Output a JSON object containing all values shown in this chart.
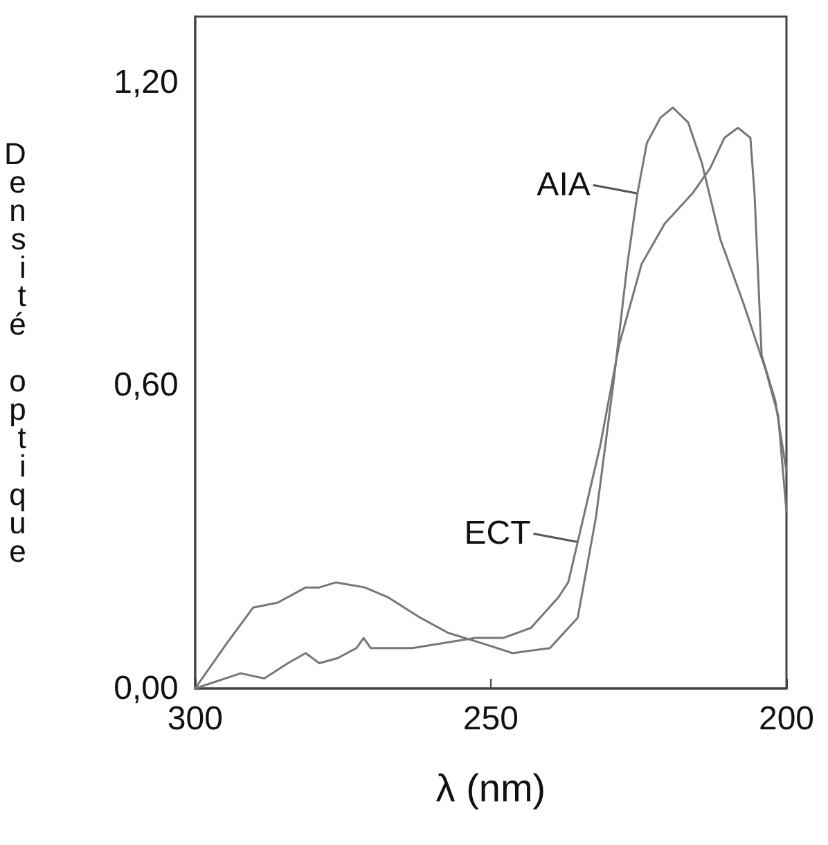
{
  "chart_data": {
    "type": "line",
    "xlabel": "λ (nm)",
    "ylabel": "Densité optique",
    "xlim": [
      300,
      200
    ],
    "xticks": [
      300,
      250,
      200
    ],
    "ylim": [
      0,
      1.33
    ],
    "yticks": [
      {
        "value": 0,
        "label": "0,00"
      },
      {
        "value": 0.6,
        "label": "0,60"
      },
      {
        "value": 1.2,
        "label": "1,20"
      }
    ],
    "grid": false,
    "marker": "none",
    "line_style": "solid",
    "series": [
      {
        "color": "#777777",
        "x": [
          300,
          294.6,
          290.2,
          286,
          281.3,
          279,
          276.2,
          271.3,
          267.3,
          261.9,
          257.2,
          251.6,
          246.3,
          240,
          235.3,
          232.2,
          229.2,
          226.9,
          225.2,
          223.6,
          221.3,
          219.2,
          216.6,
          214.3,
          211.2,
          207.2,
          203.5,
          201.4,
          200
        ],
        "values": [
          0,
          0.09,
          0.16,
          0.17,
          0.2,
          0.2,
          0.21,
          0.2,
          0.18,
          0.14,
          0.11,
          0.09,
          0.07,
          0.08,
          0.14,
          0.34,
          0.61,
          0.84,
          0.98,
          1.08,
          1.13,
          1.15,
          1.12,
          1.04,
          0.89,
          0.76,
          0.63,
          0.54,
          0.35
        ]
      },
      {
        "color": "#777777",
        "x": [
          300,
          292.3,
          288.3,
          284.3,
          281.3,
          279,
          275.9,
          272.7,
          271.5,
          270.3,
          263.3,
          252.6,
          247.9,
          243.2,
          238.6,
          236.9,
          235.3,
          231.5,
          228.3,
          224.5,
          220.6,
          215.9,
          212.9,
          210.5,
          208.2,
          206.1,
          205.4,
          204.2,
          201.9,
          200
        ],
        "values": [
          0,
          0.03,
          0.02,
          0.05,
          0.07,
          0.05,
          0.06,
          0.08,
          0.1,
          0.08,
          0.08,
          0.1,
          0.1,
          0.12,
          0.18,
          0.21,
          0.29,
          0.48,
          0.68,
          0.84,
          0.92,
          0.98,
          1.03,
          1.09,
          1.11,
          1.09,
          0.98,
          0.66,
          0.57,
          0.43
        ]
      }
    ],
    "annotations": [
      {
        "text": "AIA",
        "x": 225.2,
        "y": 0.98
      },
      {
        "text": "ECT",
        "x": 235.3,
        "y": 0.29
      }
    ]
  }
}
